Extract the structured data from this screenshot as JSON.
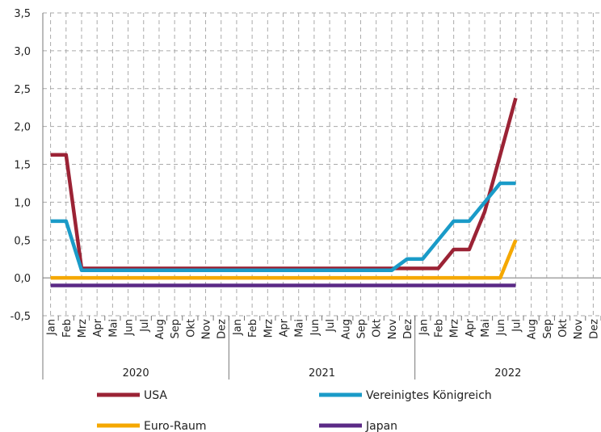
{
  "chart_data": {
    "type": "line",
    "categories": [
      "Jan",
      "Feb",
      "Mrz",
      "Apr",
      "Mai",
      "Jun",
      "Jul",
      "Aug",
      "Sep",
      "Okt",
      "Nov",
      "Dez",
      "Jan",
      "Feb",
      "Mrz",
      "Apr",
      "Mai",
      "Jun",
      "Jul",
      "Aug",
      "Sep",
      "Okt",
      "Nov",
      "Dez",
      "Jan",
      "Feb",
      "Mrz",
      "Apr",
      "Mai",
      "Jun",
      "Jul",
      "Aug",
      "Sep",
      "Okt",
      "Nov",
      "Dez"
    ],
    "groups": [
      "2020",
      "2021",
      "2022"
    ],
    "series": [
      {
        "name": "USA",
        "color": "#9b2335",
        "values": [
          1.625,
          1.625,
          0.125,
          0.125,
          0.125,
          0.125,
          0.125,
          0.125,
          0.125,
          0.125,
          0.125,
          0.125,
          0.125,
          0.125,
          0.125,
          0.125,
          0.125,
          0.125,
          0.125,
          0.125,
          0.125,
          0.125,
          0.125,
          0.125,
          0.125,
          0.125,
          0.375,
          0.375,
          0.875,
          1.625,
          2.375,
          null,
          null,
          null,
          null,
          null
        ]
      },
      {
        "name": "Vereinigtes Königreich",
        "color": "#1a9bc8",
        "values": [
          0.75,
          0.75,
          0.1,
          0.1,
          0.1,
          0.1,
          0.1,
          0.1,
          0.1,
          0.1,
          0.1,
          0.1,
          0.1,
          0.1,
          0.1,
          0.1,
          0.1,
          0.1,
          0.1,
          0.1,
          0.1,
          0.1,
          0.1,
          0.25,
          0.25,
          0.5,
          0.75,
          0.75,
          1.0,
          1.25,
          1.25,
          null,
          null,
          null,
          null,
          null
        ]
      },
      {
        "name": "Euro-Raum",
        "color": "#f5a800",
        "values": [
          0,
          0,
          0,
          0,
          0,
          0,
          0,
          0,
          0,
          0,
          0,
          0,
          0,
          0,
          0,
          0,
          0,
          0,
          0,
          0,
          0,
          0,
          0,
          0,
          0,
          0,
          0,
          0,
          0,
          0,
          0.5,
          null,
          null,
          null,
          null,
          null
        ]
      },
      {
        "name": "Japan",
        "color": "#5b2a86",
        "values": [
          -0.1,
          -0.1,
          -0.1,
          -0.1,
          -0.1,
          -0.1,
          -0.1,
          -0.1,
          -0.1,
          -0.1,
          -0.1,
          -0.1,
          -0.1,
          -0.1,
          -0.1,
          -0.1,
          -0.1,
          -0.1,
          -0.1,
          -0.1,
          -0.1,
          -0.1,
          -0.1,
          -0.1,
          -0.1,
          -0.1,
          -0.1,
          -0.1,
          -0.1,
          -0.1,
          -0.1,
          null,
          null,
          null,
          null,
          null
        ]
      }
    ],
    "ylim": [
      -0.5,
      3.5
    ],
    "yticks": [
      {
        "value": -0.5,
        "label": "-0,5"
      },
      {
        "value": 0,
        "label": "0,0"
      },
      {
        "value": 0.5,
        "label": "0,5"
      },
      {
        "value": 1,
        "label": "1,0"
      },
      {
        "value": 1.5,
        "label": "1,5"
      },
      {
        "value": 2,
        "label": "2,0"
      },
      {
        "value": 2.5,
        "label": "2,5"
      },
      {
        "value": 3,
        "label": "3,0"
      },
      {
        "value": 3.5,
        "label": "3,5"
      }
    ],
    "grid": true
  }
}
